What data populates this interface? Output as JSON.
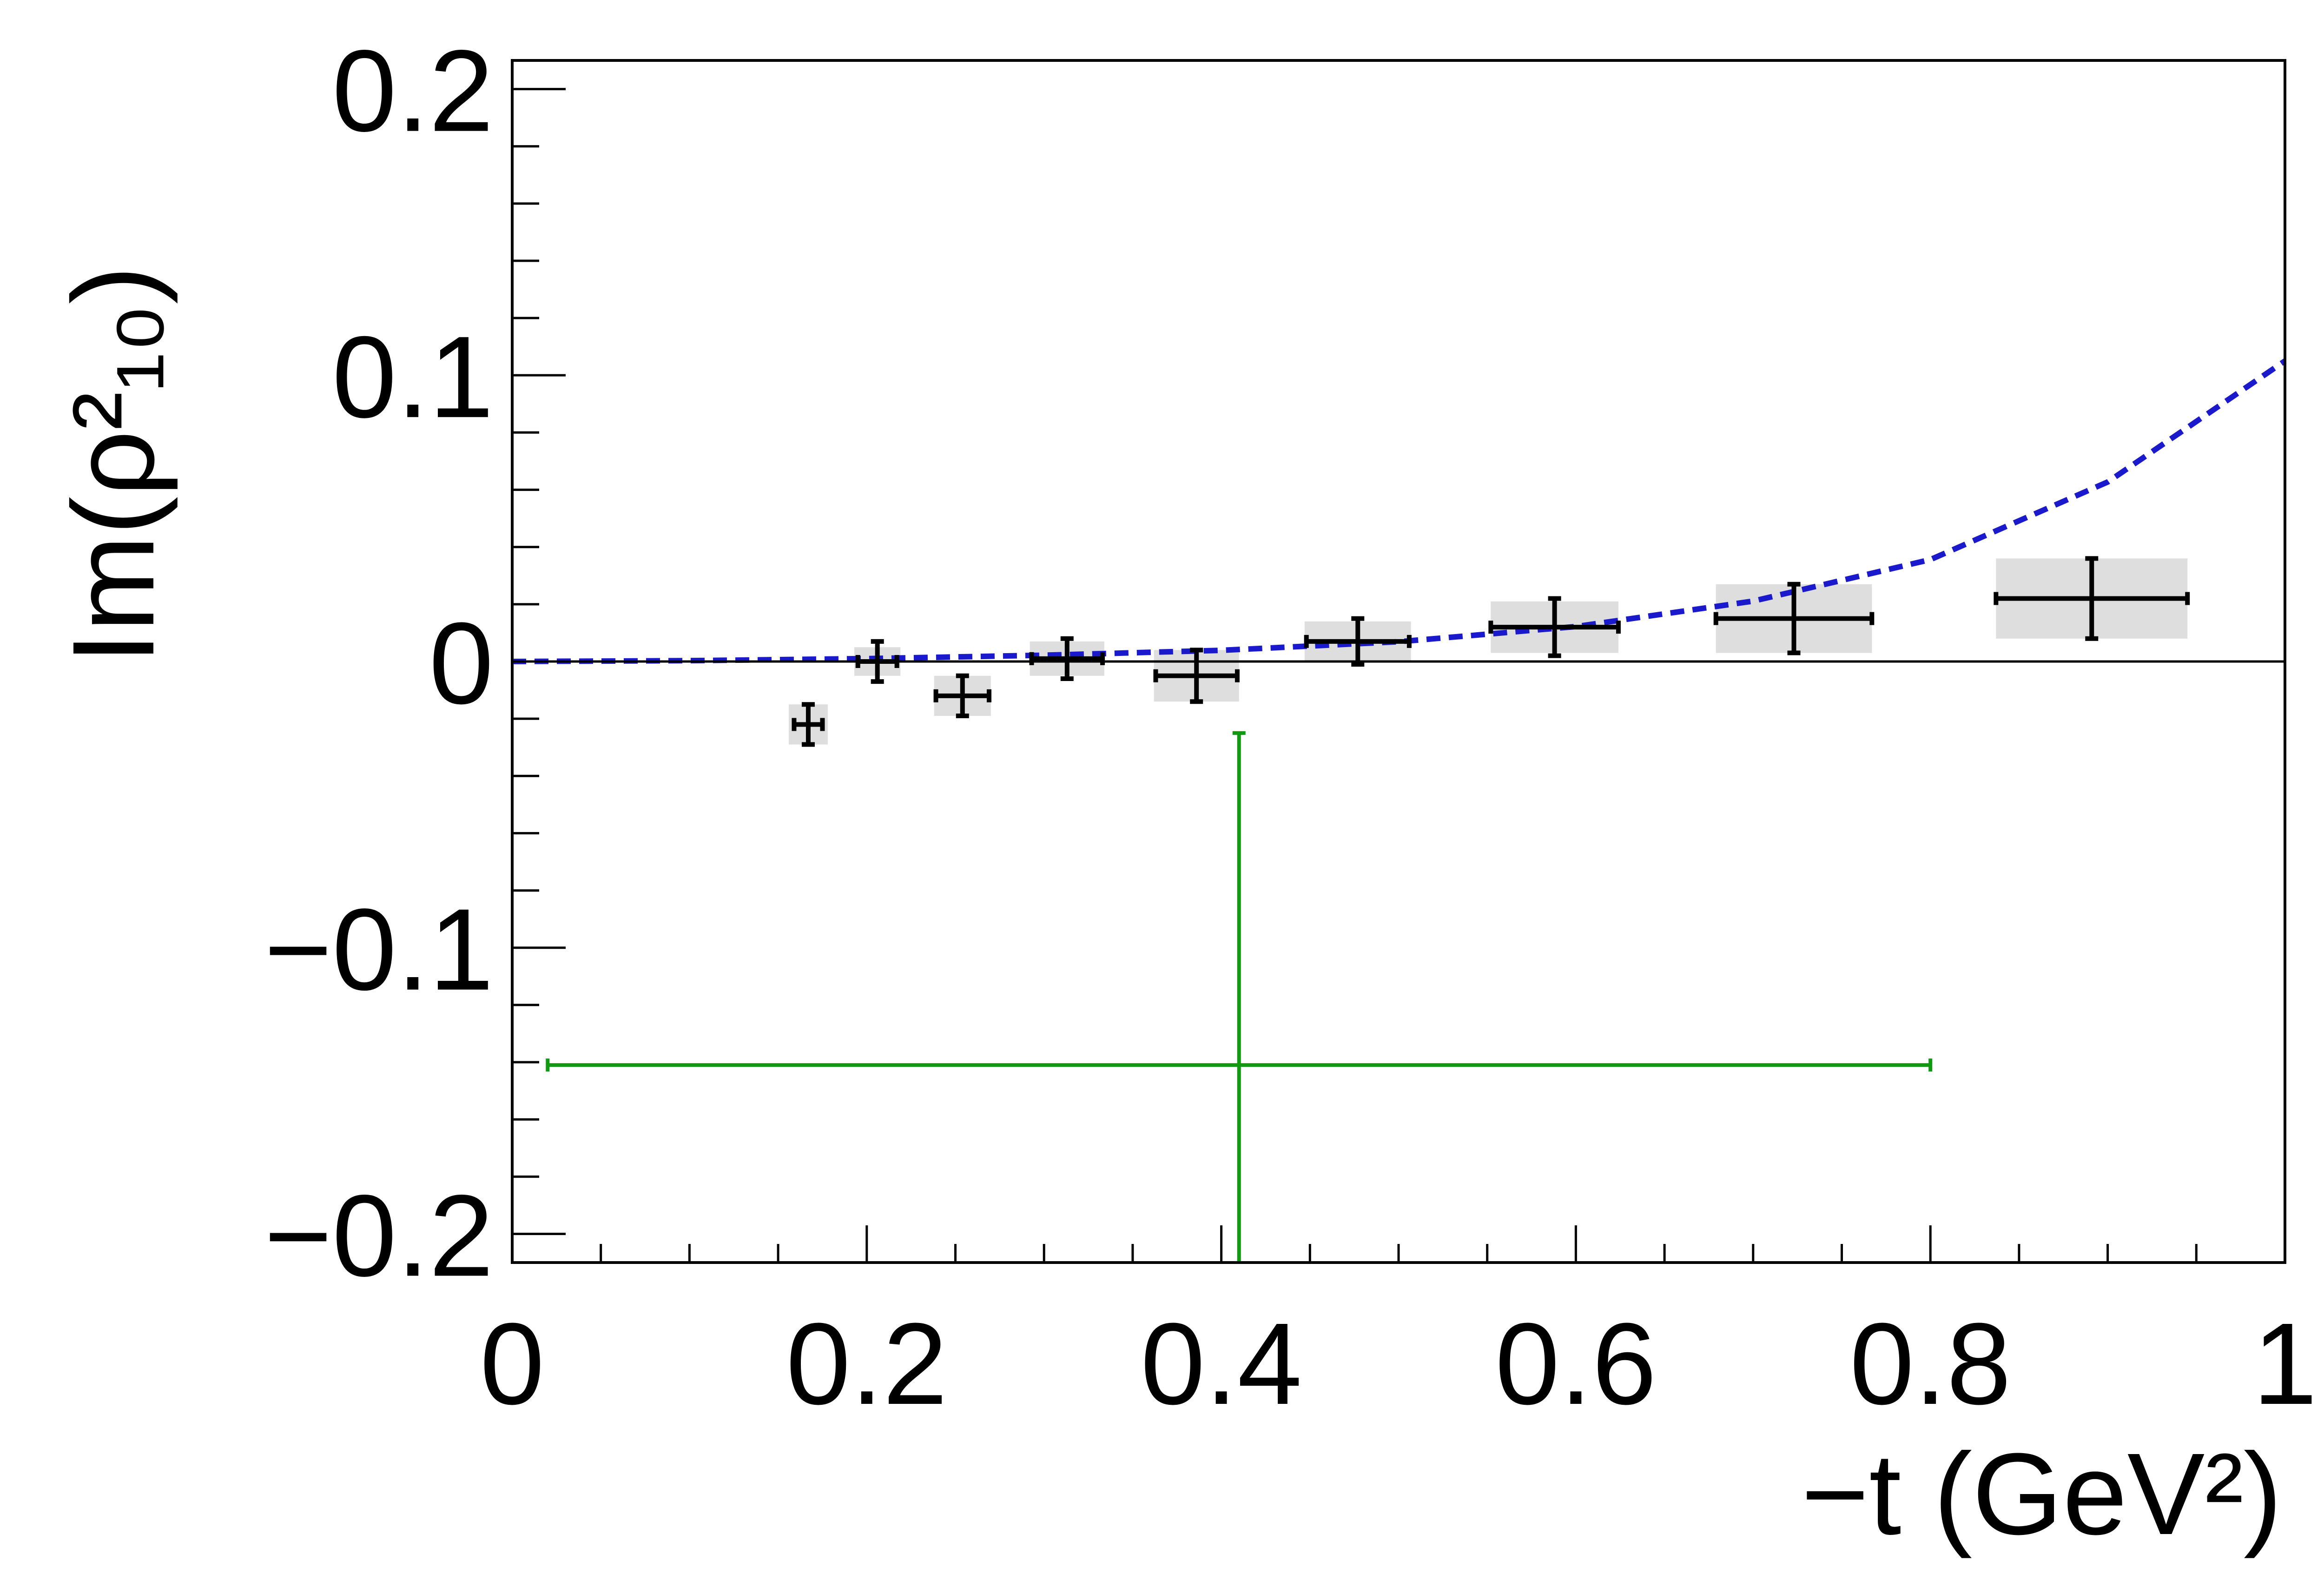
{
  "chart_data": {
    "type": "scatter",
    "xlabel": "−t (GeV²)",
    "ylabel": "Im(ρ²₁₀)",
    "xlim": [
      0,
      1
    ],
    "ylim": [
      -0.21,
      0.21
    ],
    "x_ticks": [
      {
        "value": 0,
        "label": "0"
      },
      {
        "value": 0.2,
        "label": "0.2"
      },
      {
        "value": 0.4,
        "label": "0.4"
      },
      {
        "value": 0.6,
        "label": "0.6"
      },
      {
        "value": 0.8,
        "label": "0.8"
      },
      {
        "value": 1,
        "label": "1"
      }
    ],
    "y_ticks": [
      {
        "value": 0.2,
        "label": "0.2"
      },
      {
        "value": 0.1,
        "label": "0.1"
      },
      {
        "value": 0,
        "label": "0"
      },
      {
        "value": -0.1,
        "label": "−0.1"
      },
      {
        "value": -0.2,
        "label": "−0.2"
      }
    ],
    "grid": false,
    "series": [
      {
        "color": "#000000",
        "points": [
          {
            "x": 0.167,
            "y": -0.022,
            "xerr": 0.008,
            "yerr": 0.007,
            "sys_x": 0.011,
            "sys_y": 0.007
          },
          {
            "x": 0.206,
            "y": 0.0,
            "xerr": 0.011,
            "yerr": 0.007,
            "sys_x": 0.013,
            "sys_y": 0.005
          },
          {
            "x": 0.254,
            "y": -0.012,
            "xerr": 0.015,
            "yerr": 0.007,
            "sys_x": 0.016,
            "sys_y": 0.007
          },
          {
            "x": 0.313,
            "y": 0.001,
            "xerr": 0.02,
            "yerr": 0.007,
            "sys_x": 0.021,
            "sys_y": 0.006
          },
          {
            "x": 0.386,
            "y": -0.005,
            "xerr": 0.023,
            "yerr": 0.009,
            "sys_x": 0.024,
            "sys_y": 0.009
          },
          {
            "x": 0.477,
            "y": 0.007,
            "xerr": 0.029,
            "yerr": 0.008,
            "sys_x": 0.03,
            "sys_y": 0.007
          },
          {
            "x": 0.588,
            "y": 0.012,
            "xerr": 0.036,
            "yerr": 0.01,
            "sys_x": 0.036,
            "sys_y": 0.009
          },
          {
            "x": 0.723,
            "y": 0.015,
            "xerr": 0.044,
            "yerr": 0.012,
            "sys_x": 0.044,
            "sys_y": 0.012
          },
          {
            "x": 0.891,
            "y": 0.022,
            "xerr": 0.054,
            "yerr": 0.014,
            "sys_x": 0.054,
            "sys_y": 0.014
          }
        ]
      },
      {
        "color": "#119911",
        "points": [
          {
            "x": 0.41,
            "y": -0.141,
            "xerr_low": 0.39,
            "xerr_high": 0.39,
            "yerr_low": 0.07,
            "yerr_high": 0.116
          }
        ]
      }
    ],
    "curves": [
      {
        "style": "dashed",
        "color": "#1a1acc",
        "x": [
          0,
          0.1,
          0.2,
          0.3,
          0.4,
          0.5,
          0.6,
          0.7,
          0.8,
          0.9,
          1.0
        ],
        "y": [
          0,
          0.0003,
          0.001,
          0.0022,
          0.0039,
          0.0069,
          0.0122,
          0.0211,
          0.0356,
          0.0627,
          0.105
        ]
      },
      {
        "style": "solid",
        "color": "#5511aa",
        "x": [
          0,
          0.89
        ],
        "y": [
          0,
          0
        ]
      }
    ],
    "reference_lines": [
      {
        "axis": "y",
        "value": 0,
        "color": "#000000"
      }
    ]
  }
}
